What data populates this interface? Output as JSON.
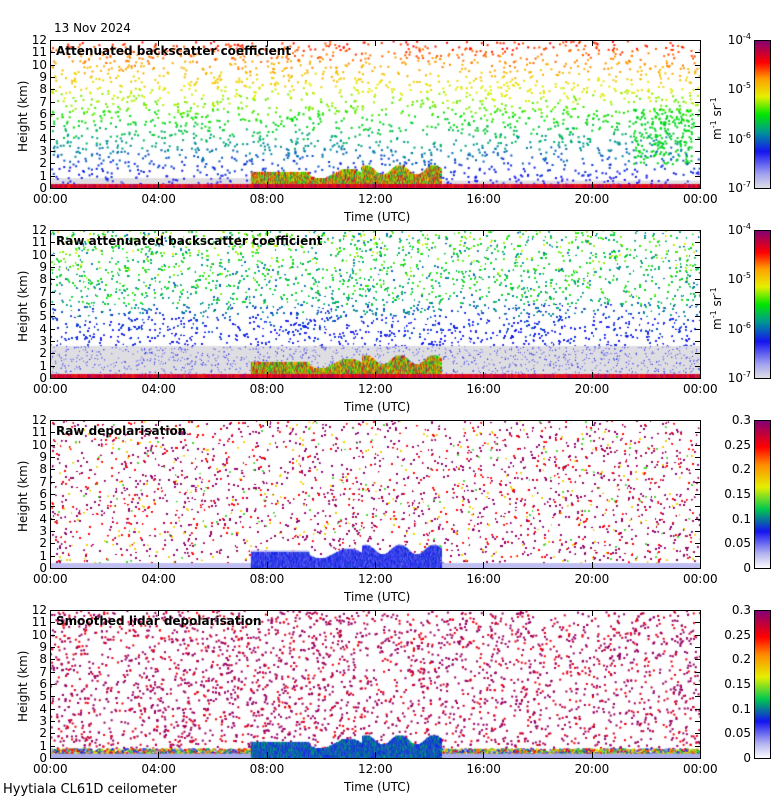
{
  "date": "13 Nov 2024",
  "footer": "Hyytiala CL61D ceilometer",
  "chart_data": [
    {
      "type": "heatmap",
      "title": "Attenuated backscatter coefficient",
      "xlabel": "Time (UTC)",
      "ylabel": "Height (km)",
      "xticks": [
        "00:00",
        "04:00",
        "08:00",
        "12:00",
        "16:00",
        "20:00",
        "00:00"
      ],
      "ylim": [
        0,
        12
      ],
      "yticks": [
        "0",
        "1",
        "2",
        "3",
        "4",
        "5",
        "6",
        "7",
        "8",
        "9",
        "10",
        "11",
        "12"
      ],
      "colorbar": {
        "scale": "log",
        "range": [
          1e-07,
          0.0001
        ],
        "ticks": [
          "10",
          "10",
          "10",
          "10"
        ],
        "exps": [
          "-7",
          "-6",
          "-5",
          "-4"
        ],
        "unit": "m",
        "unit_exp": "-1",
        "unit2": "sr",
        "unit2_exp": "-1"
      },
      "cmap": "backscatter"
    },
    {
      "type": "heatmap",
      "title": "Raw attenuated backscatter coefficient",
      "xlabel": "Time (UTC)",
      "ylabel": "Height (km)",
      "xticks": [
        "00:00",
        "04:00",
        "08:00",
        "12:00",
        "16:00",
        "20:00",
        "00:00"
      ],
      "ylim": [
        0,
        12
      ],
      "yticks": [
        "0",
        "1",
        "2",
        "3",
        "4",
        "5",
        "6",
        "7",
        "8",
        "9",
        "10",
        "11",
        "12"
      ],
      "colorbar": {
        "scale": "log",
        "range": [
          1e-07,
          0.0001
        ],
        "ticks": [
          "10",
          "10",
          "10",
          "10"
        ],
        "exps": [
          "-7",
          "-6",
          "-5",
          "-4"
        ],
        "unit": "m",
        "unit_exp": "-1",
        "unit2": "sr",
        "unit2_exp": "-1"
      },
      "cmap": "backscatter"
    },
    {
      "type": "heatmap",
      "title": "Raw depolarisation",
      "xlabel": "Time (UTC)",
      "ylabel": "Height (km)",
      "xticks": [
        "00:00",
        "04:00",
        "08:00",
        "12:00",
        "16:00",
        "20:00",
        "00:00"
      ],
      "ylim": [
        0,
        12
      ],
      "yticks": [
        "0",
        "1",
        "2",
        "3",
        "4",
        "5",
        "6",
        "7",
        "8",
        "9",
        "10",
        "11",
        "12"
      ],
      "colorbar": {
        "scale": "linear",
        "range": [
          0,
          0.3
        ],
        "ticks": [
          "0",
          "0.05",
          "0.1",
          "0.15",
          "0.2",
          "0.25",
          "0.3"
        ]
      },
      "cmap": "depol"
    },
    {
      "type": "heatmap",
      "title": "Smoothed lidar depolarisation",
      "xlabel": "Time (UTC)",
      "ylabel": "Height (km)",
      "xticks": [
        "00:00",
        "04:00",
        "08:00",
        "12:00",
        "16:00",
        "20:00",
        "00:00"
      ],
      "ylim": [
        0,
        12
      ],
      "yticks": [
        "0",
        "1",
        "2",
        "3",
        "4",
        "5",
        "6",
        "7",
        "8",
        "9",
        "10",
        "11",
        "12"
      ],
      "colorbar": {
        "scale": "linear",
        "range": [
          0,
          0.3
        ],
        "ticks": [
          "0",
          "0.05",
          "0.1",
          "0.15",
          "0.2",
          "0.25",
          "0.3"
        ]
      },
      "cmap": "depol"
    }
  ]
}
